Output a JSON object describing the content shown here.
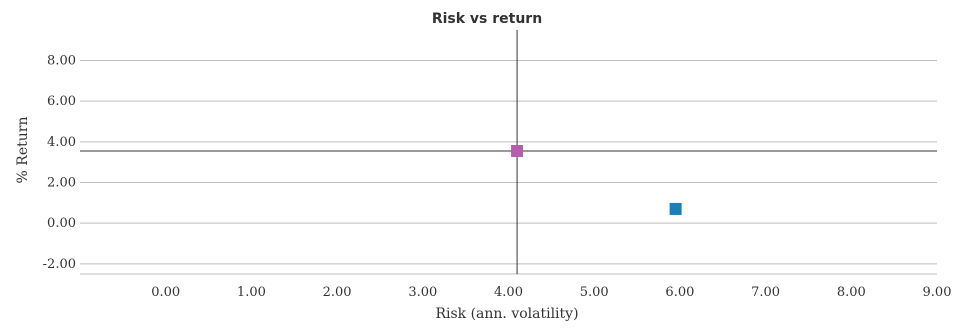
{
  "chart_data": {
    "type": "scatter",
    "title": "Risk vs return",
    "xlabel": "Risk (ann. volatility)",
    "ylabel": "% Return",
    "xlim": [
      -1.0,
      9.0
    ],
    "ylim": [
      -2.5,
      9.5
    ],
    "x_ticks": [
      "0.00",
      "1.00",
      "2.00",
      "3.00",
      "4.00",
      "5.00",
      "6.00",
      "7.00",
      "8.00",
      "9.00"
    ],
    "x_tick_values": [
      0,
      1,
      2,
      3,
      4,
      5,
      6,
      7,
      8,
      9
    ],
    "y_ticks": [
      "-2.00",
      "0.00",
      "2.00",
      "4.00",
      "6.00",
      "8.00"
    ],
    "y_tick_values": [
      -2,
      0,
      2,
      4,
      6,
      8
    ],
    "grid": "horizontal",
    "reference_lines": {
      "x": 4.1,
      "y": 3.55
    },
    "series": [
      {
        "color": "#b35fab",
        "points": [
          {
            "x": 4.1,
            "y": 3.55
          }
        ]
      },
      {
        "color": "#1a7fb5",
        "points": [
          {
            "x": 5.95,
            "y": 0.7
          }
        ]
      }
    ]
  }
}
